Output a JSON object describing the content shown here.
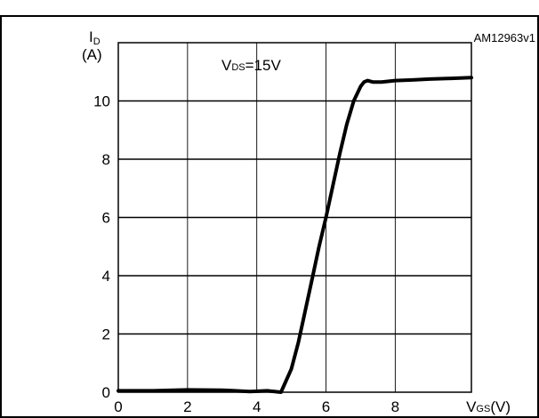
{
  "figure_ref": "AM12963v1",
  "chart_data": {
    "type": "line",
    "title": "",
    "xlabel": "VGS(V)",
    "xlabel_main": "V",
    "xlabel_sub": "GS",
    "xlabel_unit": "(V)",
    "ylabel_main": "I",
    "ylabel_sub": "D",
    "ylabel_unit": "(A)",
    "annotation_main": "V",
    "annotation_sub": "DS",
    "annotation_rest": "=15V",
    "xlim": [
      0,
      10.2
    ],
    "ylim": [
      0,
      12
    ],
    "xticks": [
      0,
      2,
      4,
      6,
      8
    ],
    "yticks": [
      0,
      2,
      4,
      6,
      8,
      10
    ],
    "grid": true,
    "series": [
      {
        "x": [
          0,
          1,
          2,
          3,
          3.8,
          4.3,
          4.7,
          5.0,
          5.2,
          5.4,
          5.6,
          5.8,
          6.0,
          6.2,
          6.4,
          6.6,
          6.8,
          7.0,
          7.1,
          7.2,
          7.35,
          7.6,
          8.0,
          8.5,
          9.0,
          9.5,
          10.2
        ],
        "y": [
          0.05,
          0.05,
          0.08,
          0.07,
          0.02,
          0.05,
          0.0,
          0.8,
          1.7,
          2.8,
          3.9,
          5.0,
          6.0,
          7.1,
          8.2,
          9.2,
          10.0,
          10.5,
          10.65,
          10.7,
          10.65,
          10.65,
          10.7,
          10.72,
          10.75,
          10.77,
          10.8
        ]
      }
    ]
  }
}
